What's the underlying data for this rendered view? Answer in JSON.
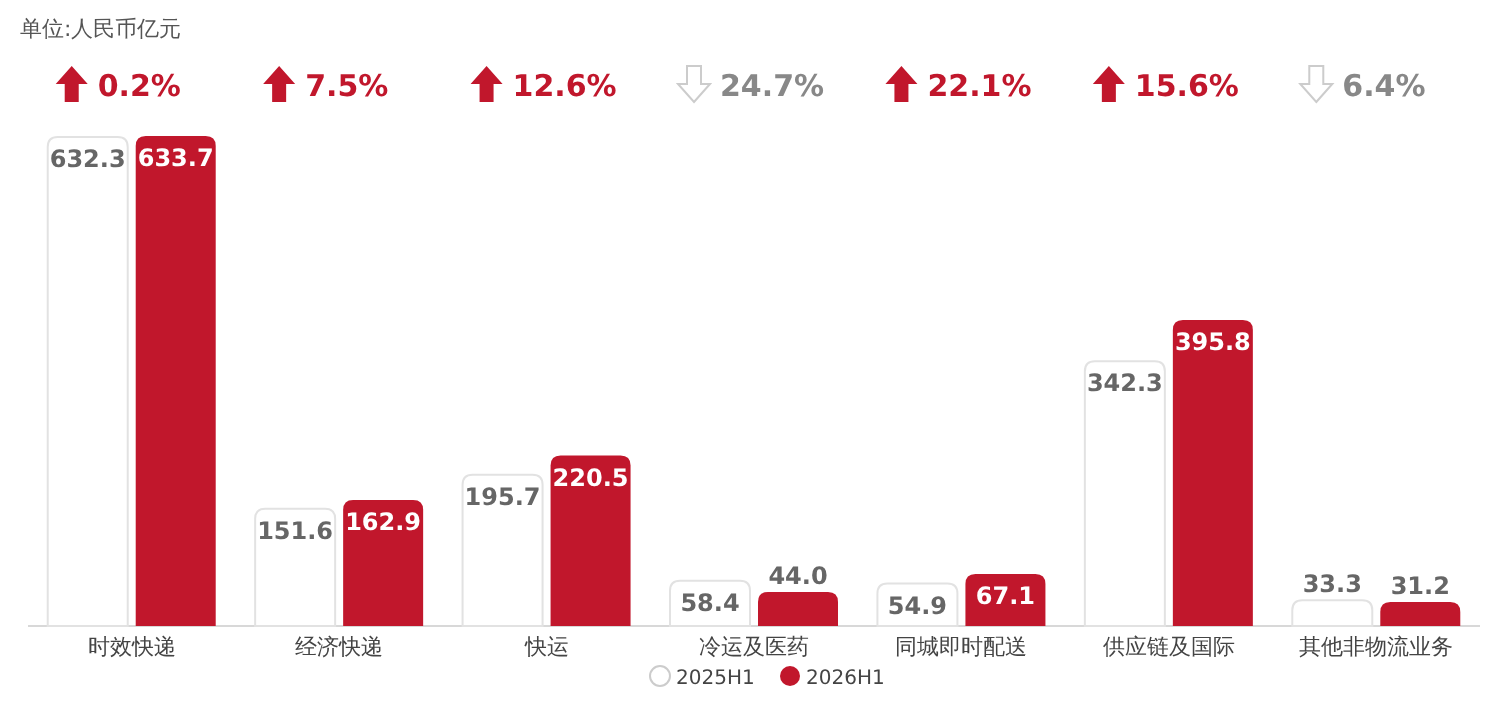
{
  "chart_data": {
    "type": "bar",
    "data_labels": true,
    "legend": "bottom",
    "categories": [
      "时效快递",
      "经济快递",
      "快运",
      "冷运及医药",
      "同城即时配送",
      "供应链及国际",
      "其他非物流业务"
    ],
    "series": [
      {
        "name": "2025H1",
        "color": "#ffffff",
        "values": [
          632.3,
          151.6,
          195.7,
          58.4,
          54.9,
          342.3,
          33.3
        ]
      },
      {
        "name": "2026H1",
        "color": "#c1172c",
        "values": [
          633.7,
          162.9,
          220.5,
          44.0,
          67.1,
          395.8,
          31.2
        ],
        "value_labels": [
          "633.7",
          "162.9",
          "220.5",
          "44.0",
          "67.1",
          "395.8",
          "31.2"
        ]
      }
    ],
    "annotations": [
      "单位:人民币亿元",
      "0.2%",
      "7.5%",
      "12.6%",
      "24.7%",
      "22.1%",
      "15.6%",
      "6.4%"
    ]
  }
}
